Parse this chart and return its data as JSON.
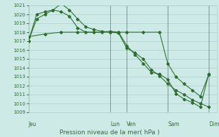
{
  "xlabel": "Pression niveau de la mer( hPa )",
  "ylim": [
    1009,
    1021
  ],
  "yticks": [
    1009,
    1010,
    1011,
    1012,
    1013,
    1014,
    1015,
    1016,
    1017,
    1018,
    1019,
    1020,
    1021
  ],
  "background_color": "#ceeae6",
  "grid_color": "#aaccc8",
  "line_color": "#2d6e2d",
  "tick_label_color": "#2d6e2d",
  "x_day_labels": [
    "Jeu",
    "Lun",
    "Ven",
    "Sam",
    "Dim"
  ],
  "x_day_positions": [
    0.0,
    5.0,
    6.0,
    8.5,
    11.0
  ],
  "xlim": [
    0,
    11.5
  ],
  "line1_x": [
    0,
    0.5,
    1.0,
    1.5,
    2.0,
    2.5,
    3.0,
    3.5,
    4.0,
    4.5,
    5.0,
    5.5,
    6.0,
    6.5,
    7.0,
    7.5,
    8.0,
    8.5,
    9.0,
    9.5,
    10.0,
    10.5,
    11.0
  ],
  "line1_y": [
    1017.0,
    1019.5,
    1020.0,
    1020.5,
    1021.2,
    1020.5,
    1019.5,
    1018.6,
    1018.3,
    1018.1,
    1018.0,
    1017.9,
    1016.2,
    1015.7,
    1015.0,
    1013.8,
    1013.1,
    1012.2,
    1011.5,
    1011.0,
    1010.4,
    1010.0,
    1009.6
  ],
  "line2_x": [
    0,
    0.5,
    1.0,
    1.5,
    2.0,
    2.5,
    3.0,
    3.5,
    4.5,
    5.0,
    5.5,
    6.0,
    6.5,
    7.0,
    7.5,
    8.0,
    8.5,
    9.0,
    9.5,
    10.0,
    10.5,
    11.0
  ],
  "line2_y": [
    1017.0,
    1020.0,
    1020.3,
    1020.5,
    1020.3,
    1019.8,
    1018.5,
    1018.0,
    1018.0,
    1018.1,
    1018.0,
    1016.5,
    1015.5,
    1014.5,
    1013.5,
    1013.3,
    1012.7,
    1011.1,
    1010.5,
    1010.1,
    1009.6,
    1013.3
  ],
  "line3_x": [
    0,
    1.0,
    2.0,
    3.0,
    4.0,
    5.0,
    5.5,
    6.0,
    7.0,
    8.0,
    8.5,
    9.0,
    9.5,
    10.0,
    10.5,
    11.0
  ],
  "line3_y": [
    1017.5,
    1017.8,
    1018.0,
    1018.0,
    1018.0,
    1018.0,
    1018.0,
    1018.0,
    1018.0,
    1018.0,
    1014.5,
    1013.0,
    1012.2,
    1011.5,
    1010.8,
    1013.2
  ]
}
